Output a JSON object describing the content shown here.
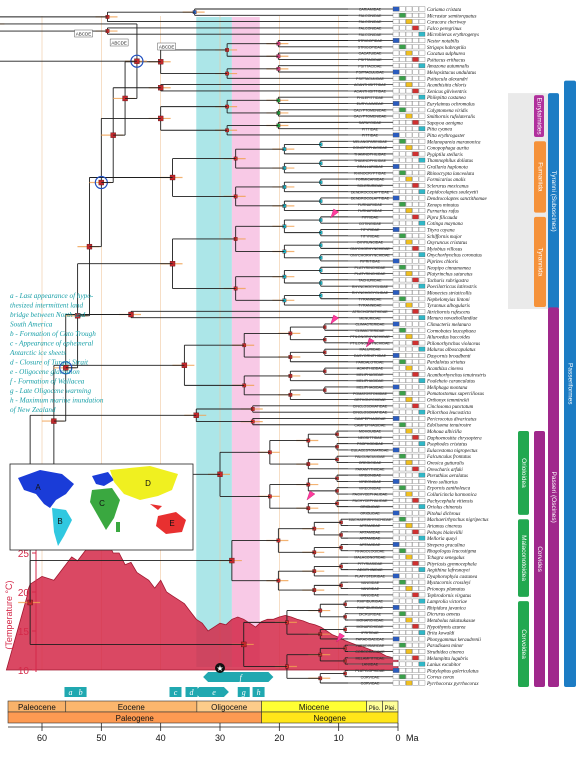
{
  "taxa": [
    {
      "family": "CARIAMIDAE",
      "species": "Cariama cristata"
    },
    {
      "family": "FALCONIDAE",
      "species": "Micrastur semitorquatus"
    },
    {
      "family": "FALCONIDAE",
      "species": "Caracara cheriway"
    },
    {
      "family": "FALCONIDAE",
      "species": "Falco peregrinus"
    },
    {
      "family": "FALCONIDAE",
      "species": "Microhierax erythrogenys"
    },
    {
      "family": "STRIGOPIDAE",
      "species": "Nestor notabilis"
    },
    {
      "family": "STRIGOPIDAE",
      "species": "Strigops habroptila"
    },
    {
      "family": "CACATUIDAE",
      "species": "Cacatua sulphurea"
    },
    {
      "family": "PSITTACIDAE",
      "species": "Psittacus erithacus"
    },
    {
      "family": "PSITTACIDAE",
      "species": "Amazona autumnalis"
    },
    {
      "family": "PSITTACULIDAE",
      "species": "Melopsittacus undulatus"
    },
    {
      "family": "PSITTACULIDAE",
      "species": "Psittacula alexandri"
    },
    {
      "family": "ACANTHISITTIDAE",
      "species": "Acanthisitta chloris"
    },
    {
      "family": "ACANTHISITTIDAE",
      "species": "Xenicus gilviventris"
    },
    {
      "family": "PHILEPITTIDAE",
      "species": "Philepitta castanea"
    },
    {
      "family": "EURYLAIMIDAE",
      "species": "Eurylaimus ochromalus"
    },
    {
      "family": "CALYPTOMENIDAE",
      "species": "Calyptomena viridis"
    },
    {
      "family": "CALYPTOMENIDAE",
      "species": "Smithornis rufolateralis"
    },
    {
      "family": "SAPAYOIDAE",
      "species": "Sapayoa aenigma"
    },
    {
      "family": "PITTIDAE",
      "species": "Pitta cyanea"
    },
    {
      "family": "PITTIDAE",
      "species": "Pitta erythrogaster"
    },
    {
      "family": "MELANOPAREIIDAE",
      "species": "Melanopareia maranonica"
    },
    {
      "family": "CONOPOPHAGIDAE",
      "species": "Conopophaga aurita"
    },
    {
      "family": "THAMNOPHILIDAE",
      "species": "Pygiptila stellaris"
    },
    {
      "family": "THAMNOPHILIDAE",
      "species": "Thamnophilus doliatus"
    },
    {
      "family": "GRALLARIIDAE",
      "species": "Grallaria haplonota"
    },
    {
      "family": "RHINOCRYPTIDAE",
      "species": "Rhinocrypta lanceolata"
    },
    {
      "family": "FORMICARIIDAE",
      "species": "Formicarius analis"
    },
    {
      "family": "SCLERURIDAE",
      "species": "Sclerurus mexicanus"
    },
    {
      "family": "DENDROCOLAPTIDAE",
      "species": "Lepidocolaptes souleyetii"
    },
    {
      "family": "DENDROCOLAPTIDAE",
      "species": "Dendrocolaptes sanctithomae"
    },
    {
      "family": "FURNARIIDAE",
      "species": "Xenops minutus"
    },
    {
      "family": "FURNARIIDAE",
      "species": "Furnarius rufus"
    },
    {
      "family": "PIPRIDAE",
      "species": "Pipra filicauda"
    },
    {
      "family": "COTINGIDAE",
      "species": "Cotinga maynana"
    },
    {
      "family": "TITYRIDAE",
      "species": "Tityra cayana"
    },
    {
      "family": "TITYRIDAE",
      "species": "Schiffornis major"
    },
    {
      "family": "OXYRUNCIDAE",
      "species": "Oxyruncus cristatus"
    },
    {
      "family": "ONYCHORHYNCHIDAE",
      "species": "Myiobius villosus"
    },
    {
      "family": "ONYCHORHYNCHIDAE",
      "species": "Onychorhynchus coronatus"
    },
    {
      "family": "PIPRITIDAE",
      "species": "Piprites chloris"
    },
    {
      "family": "PLATYRINCHIDAE",
      "species": "Neopipo cinnamomea"
    },
    {
      "family": "PLATYRINCHIDAE",
      "species": "Platyrinchus saturatus"
    },
    {
      "family": "TACHURIDAE",
      "species": "Tachuris rubrigastra"
    },
    {
      "family": "RHYNCHOCYCLIDAE",
      "species": "Poecilotriccus latirostris"
    },
    {
      "family": "RHYNCHOCYCLIDAE",
      "species": "Mionectes striaticollis"
    },
    {
      "family": "TYRANNIDAE",
      "species": "Nephelomyias lintoni"
    },
    {
      "family": "TYRANNIDAE",
      "species": "Tyrannus albogularis"
    },
    {
      "family": "ATRICHORNITHIDAE",
      "species": "Atrichornis rufescens"
    },
    {
      "family": "MENURIDAE",
      "species": "Menura novaehollandiae"
    },
    {
      "family": "CLIMACTERIDAE",
      "species": "Climacteris melanura"
    },
    {
      "family": "CLIMACTERIDAE",
      "species": "Cormobates leucophaea"
    },
    {
      "family": "PTILONORHYNCHIDAE",
      "species": "Ailuroedus buccoides"
    },
    {
      "family": "PTILONORHYNCHIDAE",
      "species": "Ptilonorhynchus violaceus"
    },
    {
      "family": "MALURIDAE",
      "species": "Malurus alboscapulatus"
    },
    {
      "family": "DASYORNITHIDAE",
      "species": "Dasyornis broadbenti"
    },
    {
      "family": "PARDALOTIDAE",
      "species": "Pardalotus striatus"
    },
    {
      "family": "ACANTHIZIDAE",
      "species": "Acanthiza cinerea"
    },
    {
      "family": "MELIPHAGIDAE",
      "species": "Acanthorhynchus tenuirostris"
    },
    {
      "family": "MELIPHAGIDAE",
      "species": "Foulehaio carunculatus"
    },
    {
      "family": "MELIPHAGIDAE",
      "species": "Meliphaga montana"
    },
    {
      "family": "POMATOSTOMIDAE",
      "species": "Pomatostomus superciliosus"
    },
    {
      "family": "ORTHONYCHIDAE",
      "species": "Orthonyx temminckii"
    },
    {
      "family": "CINCLOSOMATIDAE",
      "species": "Cinclosoma punctatum"
    },
    {
      "family": "CINCLOSOMATIDAE",
      "species": "Ptilorrhoa leucosticta"
    },
    {
      "family": "CAMPEPHAGIDAE",
      "species": "Pericrocotus divaricatus"
    },
    {
      "family": "CAMPEPHAGIDAE",
      "species": "Edolisoma tenuirostre"
    },
    {
      "family": "MOHOUIDAE",
      "species": "Mohoua albicilla"
    },
    {
      "family": "NEOSITTIDAE",
      "species": "Daphoenositta chrysoptera"
    },
    {
      "family": "PSOPHODIDAE",
      "species": "Psophodes cristatus"
    },
    {
      "family": "EULACESTOMATIDAE",
      "species": "Eulacestoma nigropectus"
    },
    {
      "family": "FALCUNCULIDAE",
      "species": "Falcunculus frontatus"
    },
    {
      "family": "OREOICIDAE",
      "species": "Oreoica gutturalis"
    },
    {
      "family": "PARAMYTHIIDAE",
      "species": "Oreocharis arfaki"
    },
    {
      "family": "VIREONIDAE",
      "species": "Pteruthius aeralatus"
    },
    {
      "family": "VIREONIDAE",
      "species": "Vireo solitarius"
    },
    {
      "family": "VIREONIDAE",
      "species": "Erpornis zantholeuca"
    },
    {
      "family": "PACHYCEPHALIDAE",
      "species": "Colluricincla harmonica"
    },
    {
      "family": "PACHYCEPHALIDAE",
      "species": "Pachycephala vitiensis"
    },
    {
      "family": "ORIOLIDAE",
      "species": "Oriolus chinensis"
    },
    {
      "family": "ORIOLIDAE",
      "species": "Pitohui dichrous"
    },
    {
      "family": "MACHAERIRHYNCHIDAE",
      "species": "Machaerirhynchus nigripectus"
    },
    {
      "family": "ARTAMIDAE",
      "species": "Artamus cinereus"
    },
    {
      "family": "ARTAMIDAE",
      "species": "Peltops blainvillii"
    },
    {
      "family": "ARTAMIDAE",
      "species": "Melloria quoyi"
    },
    {
      "family": "ARTAMIDAE",
      "species": "Strepera graculina"
    },
    {
      "family": "RHAGOLOGIDAE",
      "species": "Rhagologus leucostigma"
    },
    {
      "family": "MALACONOTIDAE",
      "species": "Tchagra senegalus"
    },
    {
      "family": "PITYRIASIDAE",
      "species": "Pityriasis gymnocephala"
    },
    {
      "family": "AEGITHINIDAE",
      "species": "Aegithina lafresnayei"
    },
    {
      "family": "PLATYSTEIRIDAE",
      "species": "Dyaphorophyia castanea"
    },
    {
      "family": "VANGIDAE",
      "species": "Mystacornis crossleyi"
    },
    {
      "family": "VANGIDAE",
      "species": "Prionops plumatus"
    },
    {
      "family": "VANGIDAE",
      "species": "Tephrodornis virgatus"
    },
    {
      "family": "RHIPIDURIDAE",
      "species": "Lamprolia victoriae"
    },
    {
      "family": "RHIPIDURIDAE",
      "species": "Rhipidura javanica"
    },
    {
      "family": "DICRURIDAE",
      "species": "Dicrurus aeneus"
    },
    {
      "family": "MONARCHIDAE",
      "species": "Metabolus takatsukasae"
    },
    {
      "family": "MONARCHIDAE",
      "species": "Hypothymis azurea"
    },
    {
      "family": "IFRITIDAE",
      "species": "Ifrita kowaldi"
    },
    {
      "family": "PARADISAEIDAE",
      "species": "Phonygammus keraudrenii"
    },
    {
      "family": "PARADISAEIDAE",
      "species": "Paradisaea minor"
    },
    {
      "family": "CORCORACIDAE",
      "species": "Struthidea cinerea"
    },
    {
      "family": "MELAMPITTIDAE",
      "species": "Melampitta lugubris"
    },
    {
      "family": "LANIIDAE",
      "species": "Lanius excubitor"
    },
    {
      "family": "PLATYLOPHIDAE",
      "species": "Platylophus galericulatus"
    },
    {
      "family": "CORVIDAE",
      "species": "Corvus corax"
    },
    {
      "family": "CORVIDAE",
      "species": "Pyrrhocorax pyrrhocorax"
    }
  ],
  "legend_events": [
    "a - Last appearance of hypo-\n     thesized intermittent land\n     bridge between North and\n     South America",
    "b - Formation of Cato Trough",
    "c - Appearance of ephemeral\n     Antarctic ice sheets",
    "d - Closure of Turgai Strait",
    "e - Oligocene glaciation",
    "f - Formation of Wallacea",
    "g - Late Oligocene warming",
    "h - Maximum marine inundation\n     of New Zealand"
  ],
  "map_labels": [
    "A",
    "B",
    "C",
    "D",
    "E"
  ],
  "node_label": "ABCDE",
  "clades": {
    "suboscines": "Tyranni (Suboscines)",
    "eurylaimides": "Eurylaimides",
    "furnariida": "Furnariida",
    "tyrannida": "Tyrannida",
    "passeriformes": "Passeriformes",
    "oscines": "Passeri (Oscines)",
    "corvides": "Corvides",
    "orioloidea": "Orioloidea",
    "malaconotoidea": "Malaconotoidea",
    "corvoidea": "Corvoidea"
  },
  "temperature": {
    "axis_label": "(Temperature °C)",
    "ticks": [
      10,
      15,
      20,
      25
    ],
    "curve_ma": [
      66,
      64,
      62,
      60,
      58,
      56,
      55,
      54,
      53,
      52,
      51,
      50,
      49,
      48,
      47,
      46,
      45,
      44,
      43,
      42,
      41,
      40,
      39,
      38,
      37,
      36,
      35,
      34,
      33,
      32,
      31,
      30,
      29,
      28,
      27,
      26,
      25,
      24,
      23,
      22,
      21,
      20,
      19,
      18,
      17,
      16,
      15,
      14,
      13,
      12,
      11,
      10,
      9,
      8,
      7,
      6,
      5,
      4,
      3,
      2,
      1,
      0
    ],
    "curve_temp": [
      19.5,
      20,
      21,
      22,
      21.5,
      23.5,
      24.5,
      24,
      25,
      26,
      27,
      25.5,
      26.5,
      25,
      25,
      23.5,
      23.8,
      22.5,
      22,
      21.5,
      20.5,
      21.5,
      20,
      19.5,
      19,
      18.5,
      17.5,
      16.5,
      16,
      15,
      15.5,
      16,
      15.8,
      16.5,
      16.8,
      16.5,
      16,
      15.5,
      16.2,
      16.5,
      16.5,
      16.8,
      17,
      16.8,
      16.5,
      16.3,
      16,
      15.8,
      15.5,
      15,
      14.5,
      14.2,
      13.8,
      13.5,
      13.2,
      13,
      12.7,
      12.4,
      12.2,
      11.8,
      11.6,
      11.3
    ]
  },
  "events": [
    {
      "label": "a",
      "ma": 55.2
    },
    {
      "label": "b",
      "ma": 53.5
    },
    {
      "label": "c",
      "ma": 37.5
    },
    {
      "label": "d",
      "ma": 34.8
    },
    {
      "label": "e",
      "ma": 31
    },
    {
      "label": "f",
      "ma": 27
    },
    {
      "label": "g",
      "ma": 26
    },
    {
      "label": "h",
      "ma": 23.5
    }
  ],
  "epochs": [
    {
      "name": "Paleocene",
      "start": 66,
      "end": 56,
      "color": "#f8b26a"
    },
    {
      "name": "Eocene",
      "start": 56,
      "end": 33.9,
      "color": "#fbb66d"
    },
    {
      "name": "Oligocene",
      "start": 33.9,
      "end": 23,
      "color": "#fdcc8a"
    },
    {
      "name": "Miocene",
      "start": 23,
      "end": 5.3,
      "color": "#ffff33"
    },
    {
      "name": "Plio.",
      "start": 5.3,
      "end": 2.6,
      "color": "#ffff99"
    },
    {
      "name": "Plei.",
      "start": 2.6,
      "end": 0,
      "color": "#ffff99"
    }
  ],
  "periods": [
    {
      "name": "Paleogene",
      "start": 66,
      "end": 23,
      "color": "#fd9a52"
    },
    {
      "name": "Neogene",
      "start": 23,
      "end": 0,
      "color": "#ffe619"
    }
  ],
  "time_axis": {
    "ticks": [
      60,
      50,
      40,
      30,
      20,
      10,
      0
    ],
    "unit": "Ma"
  },
  "colors": {
    "cyan_band": "#48c8cc",
    "pink_band": "#f088c8",
    "node_red": "#c0282c",
    "temp_red": "#d42848",
    "event_teal": "#20a8b0",
    "tyranni_blue": "#1c7cc4",
    "passeri_purple": "#a0288c",
    "furnariida_orange": "#f5923a"
  }
}
